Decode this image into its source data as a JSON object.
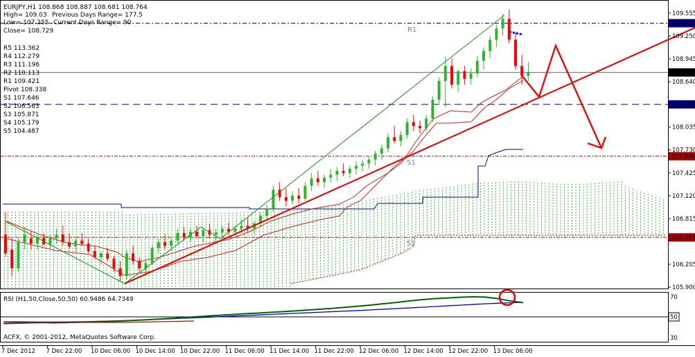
{
  "header": {
    "symbol_line": "EURJPY,H1  108.868 108.887 108.681 108.764",
    "high_line": "High= 109.03",
    "prev_range": "Previous Days Range= 177.5",
    "low_line": "Low= 107.255",
    "curr_range": "Current Days Range= 90",
    "close_line": "Close= 108.729"
  },
  "pivots": {
    "r5": "R5 113.362",
    "r4": "R4 112.279",
    "r3": "R3 111.196",
    "r2": "R2 110.113",
    "r1": "R1 109.421",
    "pivot": "Pivot 108.338",
    "s1": "S1 107.646",
    "s2": "S2 106.563",
    "s3": "S3 105.871",
    "s4": "S4 105.179",
    "s5": "S5 104.487"
  },
  "chart_labels": {
    "r1": "R1",
    "s1": "S1",
    "s2": "S2"
  },
  "price_scale": [
    "109.555",
    "109.250",
    "108.945",
    "108.640",
    "108.035",
    "107.730",
    "107.425",
    "107.120",
    "106.815",
    "106.205",
    "105.900"
  ],
  "price_badges": {
    "r1": "109.421",
    "close": "108.764",
    "pivot": "108.338",
    "s1": "107.646",
    "s2": "106.563"
  },
  "rsi": {
    "label": "RSI (H1,50,Close,50,50) 60.9486 64.7349",
    "scale": [
      "70",
      "50",
      "30"
    ],
    "fast": [
      43,
      43.5,
      43.8,
      44,
      43.6,
      43.9,
      44.3,
      44.8,
      45.1,
      45.4,
      46,
      46.7,
      47.4,
      48.2,
      49,
      49.9,
      50.8,
      51.7,
      52.5,
      53.3,
      54,
      54.8,
      55.6,
      56.4,
      57.3,
      58.2,
      59.2,
      60.3,
      61.4,
      62.7,
      64.1,
      65.5,
      67,
      68.4,
      69.5,
      70.2,
      71,
      71.5,
      71.2,
      69.5,
      67,
      65.2
    ],
    "slow": [
      44.8,
      44.7,
      44.6,
      44.5,
      44.5,
      44.6,
      44.8,
      45.1,
      45.4,
      45.8,
      46.3,
      46.8,
      47.3,
      47.8,
      48.4,
      49,
      49.6,
      50.2,
      50.8,
      51.4,
      52,
      52.6,
      53.2,
      53.8,
      54.4,
      55,
      55.6,
      56.2,
      56.8,
      57.5,
      58.2,
      58.9,
      59.6,
      60.3,
      61,
      61.8,
      62.5,
      63.3,
      64,
      64.6,
      65.1,
      65.5
    ]
  },
  "footer": "ACFX, © 2001-2012, MetaQuotes Software Corp.",
  "time_axis": [
    "7 Dec 2012",
    "7 Dec 22:00",
    "10 Dec 06:00",
    "10 Dec 14:00",
    "10 Dec 22:00",
    "11 Dec 06:00",
    "11 Dec 14:00",
    "11 Dec 22:00",
    "12 Dec 06:00",
    "12 Dec 14:00",
    "12 Dec 22:00",
    "13 Dec 06:00"
  ],
  "colors": {
    "bull": "#2db52d",
    "bear": "#ff0000",
    "trendline": "#dd1111",
    "channel": "#1a8c1a",
    "kijun": "#0000aa",
    "cloud": "#38b838",
    "pivot_blue": "#000080",
    "s_red": "#aa0000",
    "rsi_fast": "#006400",
    "rsi_slow": "#0000cc"
  },
  "chart_data": {
    "type": "candlestick",
    "title": "EURJPY,H1",
    "ylim": [
      105.87,
      109.68
    ],
    "levels": {
      "R1": 109.421,
      "Pivot": 108.338,
      "S1": 107.646,
      "S2": 106.563,
      "Close": 108.764
    },
    "candles": [
      [
        106.6,
        106.9,
        106.3,
        106.35
      ],
      [
        106.4,
        106.55,
        106.05,
        106.15
      ],
      [
        106.15,
        106.55,
        106.1,
        106.5
      ],
      [
        106.5,
        106.7,
        106.4,
        106.6
      ],
      [
        106.55,
        106.65,
        106.4,
        106.48
      ],
      [
        106.48,
        106.6,
        106.4,
        106.56
      ],
      [
        106.56,
        106.62,
        106.45,
        106.47
      ],
      [
        106.47,
        106.6,
        106.4,
        106.55
      ],
      [
        106.55,
        106.68,
        106.48,
        106.6
      ],
      [
        106.6,
        106.72,
        106.45,
        106.5
      ],
      [
        106.5,
        106.62,
        106.4,
        106.44
      ],
      [
        106.44,
        106.58,
        106.38,
        106.52
      ],
      [
        106.52,
        106.62,
        106.45,
        106.48
      ],
      [
        106.48,
        106.55,
        106.35,
        106.38
      ],
      [
        106.38,
        106.45,
        106.28,
        106.3
      ],
      [
        106.3,
        106.38,
        106.2,
        106.35
      ],
      [
        106.35,
        106.42,
        106.25,
        106.28
      ],
      [
        106.28,
        106.32,
        106.1,
        106.15
      ],
      [
        106.15,
        106.25,
        105.98,
        106.05
      ],
      [
        106.05,
        106.4,
        106.0,
        106.35
      ],
      [
        106.35,
        106.45,
        106.2,
        106.25
      ],
      [
        106.25,
        106.3,
        106.1,
        106.15
      ],
      [
        106.15,
        106.25,
        106.05,
        106.22
      ],
      [
        106.22,
        106.45,
        106.2,
        106.42
      ],
      [
        106.42,
        106.55,
        106.35,
        106.5
      ],
      [
        106.5,
        106.6,
        106.4,
        106.45
      ],
      [
        106.45,
        106.55,
        106.38,
        106.52
      ],
      [
        106.52,
        106.68,
        106.48,
        106.62
      ],
      [
        106.62,
        106.7,
        106.52,
        106.56
      ],
      [
        106.56,
        106.68,
        106.5,
        106.64
      ],
      [
        106.64,
        106.72,
        106.55,
        106.58
      ],
      [
        106.58,
        106.7,
        106.5,
        106.66
      ],
      [
        106.66,
        106.75,
        106.55,
        106.6
      ],
      [
        106.6,
        106.68,
        106.5,
        106.63
      ],
      [
        106.63,
        106.72,
        106.56,
        106.68
      ],
      [
        106.68,
        106.76,
        106.6,
        106.64
      ],
      [
        106.64,
        106.72,
        106.55,
        106.68
      ],
      [
        106.68,
        106.8,
        106.62,
        106.72
      ],
      [
        106.72,
        106.82,
        106.62,
        106.68
      ],
      [
        106.68,
        106.78,
        106.6,
        106.75
      ],
      [
        106.75,
        106.9,
        106.7,
        106.85
      ],
      [
        106.85,
        107.0,
        106.78,
        106.95
      ],
      [
        106.95,
        107.25,
        106.9,
        107.2
      ],
      [
        107.2,
        107.3,
        107.05,
        107.1
      ],
      [
        107.1,
        107.22,
        106.98,
        107.05
      ],
      [
        107.05,
        107.18,
        107.0,
        107.12
      ],
      [
        107.12,
        107.22,
        107.02,
        107.08
      ],
      [
        107.08,
        107.3,
        107.05,
        107.25
      ],
      [
        107.25,
        107.42,
        107.18,
        107.35
      ],
      [
        107.35,
        107.45,
        107.25,
        107.3
      ],
      [
        107.3,
        107.4,
        107.22,
        107.36
      ],
      [
        107.36,
        107.48,
        107.3,
        107.4
      ],
      [
        107.4,
        107.5,
        107.32,
        107.45
      ],
      [
        107.45,
        107.55,
        107.38,
        107.42
      ],
      [
        107.42,
        107.52,
        107.35,
        107.48
      ],
      [
        107.48,
        107.58,
        107.4,
        107.52
      ],
      [
        107.52,
        107.6,
        107.44,
        107.55
      ],
      [
        107.55,
        107.65,
        107.48,
        107.6
      ],
      [
        107.6,
        107.72,
        107.52,
        107.68
      ],
      [
        107.68,
        107.8,
        107.6,
        107.75
      ],
      [
        107.75,
        107.95,
        107.7,
        107.9
      ],
      [
        107.9,
        108.05,
        107.82,
        107.85
      ],
      [
        107.85,
        107.98,
        107.78,
        107.93
      ],
      [
        107.93,
        108.15,
        107.88,
        108.1
      ],
      [
        108.1,
        108.2,
        107.98,
        108.05
      ],
      [
        108.05,
        108.12,
        107.95,
        108.02
      ],
      [
        108.02,
        108.2,
        107.98,
        108.15
      ],
      [
        108.15,
        108.45,
        108.1,
        108.4
      ],
      [
        108.4,
        108.7,
        108.35,
        108.65
      ],
      [
        108.65,
        108.98,
        108.3,
        108.85
      ],
      [
        108.85,
        108.95,
        108.55,
        108.6
      ],
      [
        108.6,
        108.8,
        108.5,
        108.78
      ],
      [
        108.78,
        108.85,
        108.6,
        108.68
      ],
      [
        108.68,
        108.82,
        108.6,
        108.75
      ],
      [
        108.75,
        108.98,
        108.7,
        108.92
      ],
      [
        108.92,
        109.1,
        108.8,
        109.05
      ],
      [
        109.05,
        109.25,
        108.95,
        109.2
      ],
      [
        109.2,
        109.4,
        109.1,
        109.35
      ],
      [
        109.35,
        109.55,
        109.25,
        109.48
      ],
      [
        109.48,
        109.6,
        109.15,
        109.2
      ],
      [
        109.2,
        109.3,
        108.8,
        108.85
      ],
      [
        108.85,
        109.0,
        108.6,
        108.72
      ],
      [
        108.72,
        108.9,
        108.65,
        108.76
      ]
    ]
  }
}
